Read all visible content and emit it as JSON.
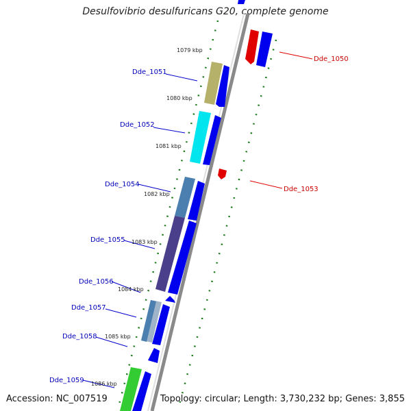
{
  "title": "Desulfovibrio desulfuricans G20, complete genome",
  "accession": "Accession: NC_007519",
  "summary": "Topology: circular; Length: 3,730,232 bp; Genes: 3,855",
  "kbp_labels": [
    "1079 kbp",
    "1080 kbp",
    "1081 kbp",
    "1082 kbp",
    "1083 kbp",
    "1084 kbp",
    "1085 kbp",
    "1086 kbp"
  ],
  "genes": [
    {
      "name": "Dde_1050",
      "color": "#cc0000"
    },
    {
      "name": "Dde_1051",
      "color": "#0000bb"
    },
    {
      "name": "Dde_1052",
      "color": "#0000bb"
    },
    {
      "name": "Dde_1053",
      "color": "#cc0000"
    },
    {
      "name": "Dde_1054",
      "color": "#0000bb"
    },
    {
      "name": "Dde_1055",
      "color": "#0000bb"
    },
    {
      "name": "Dde_1056",
      "color": "#0000bb"
    },
    {
      "name": "Dde_1057",
      "color": "#0000bb"
    },
    {
      "name": "Dde_1058",
      "color": "#0000bb"
    },
    {
      "name": "Dde_1059",
      "color": "#0000bb"
    }
  ],
  "colors": {
    "forward_strand": "#0000ff",
    "reverse_strand": "#ff0000",
    "gc_ticks": "#1a7a1a",
    "backbone": "#888888",
    "cog_khaki": "#b5b06a",
    "cog_cyan": "#00e5ee",
    "cog_steel": "#4a7fb0",
    "cog_indigo": "#4a3f8a",
    "cog_lightsteel": "#9fb4c9",
    "cog_green": "#33cc33"
  }
}
